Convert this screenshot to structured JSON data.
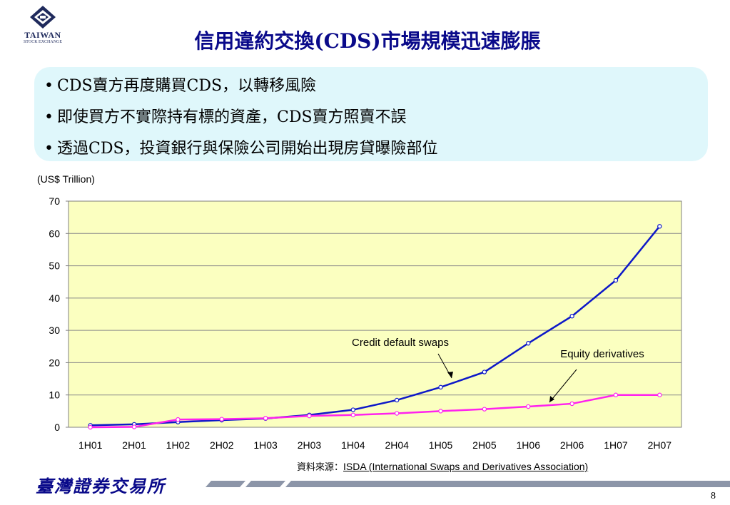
{
  "header": {
    "logo_name": "TAIWAN",
    "logo_sub": "STOCK EXCHANGE",
    "title": "信用違約交換(CDS)市場規模迅速膨脹"
  },
  "bullets": [
    "CDS賣方再度購買CDS，以轉移風險",
    "即使買方不實際持有標的資產，CDS賣方照賣不誤",
    "透過CDS，投資銀行與保險公司開始出現房貸曝險部位"
  ],
  "bullet_symbol": "•",
  "chart_data": {
    "type": "line",
    "ylabel": "(US$ Trillion)",
    "ylim": [
      0,
      70
    ],
    "yticks": [
      0,
      10,
      20,
      30,
      40,
      50,
      60,
      70
    ],
    "categories": [
      "1H01",
      "2H01",
      "1H02",
      "2H02",
      "1H03",
      "2H03",
      "1H04",
      "2H04",
      "1H05",
      "2H05",
      "1H06",
      "2H06",
      "1H07",
      "2H07"
    ],
    "series": [
      {
        "name": "Credit default swaps",
        "color": "#0d18c8",
        "values": [
          0.6,
          0.9,
          1.6,
          2.2,
          2.7,
          3.8,
          5.4,
          8.4,
          12.4,
          17.1,
          26.0,
          34.4,
          45.5,
          62.2
        ]
      },
      {
        "name": "Equity derivatives",
        "color": "#ff22ee",
        "values": [
          0.0,
          0.1,
          2.4,
          2.5,
          2.8,
          3.5,
          3.8,
          4.3,
          5.0,
          5.6,
          6.4,
          7.3,
          10.0,
          10.0
        ]
      }
    ],
    "annotations": [
      "Credit default swaps",
      "Equity derivatives"
    ],
    "plot_background": "#fbffc0",
    "grid": true,
    "legend": "none"
  },
  "source": {
    "prefix": "資料來源：",
    "text": "ISDA (International Swaps and Derivatives Association)"
  },
  "footer": {
    "org_name": "臺灣證券交易所",
    "page_number": "8"
  },
  "colors": {
    "title": "#0a0a8a",
    "bullet_box": "#dff7fb",
    "footer_bar": "#8c95a8"
  }
}
